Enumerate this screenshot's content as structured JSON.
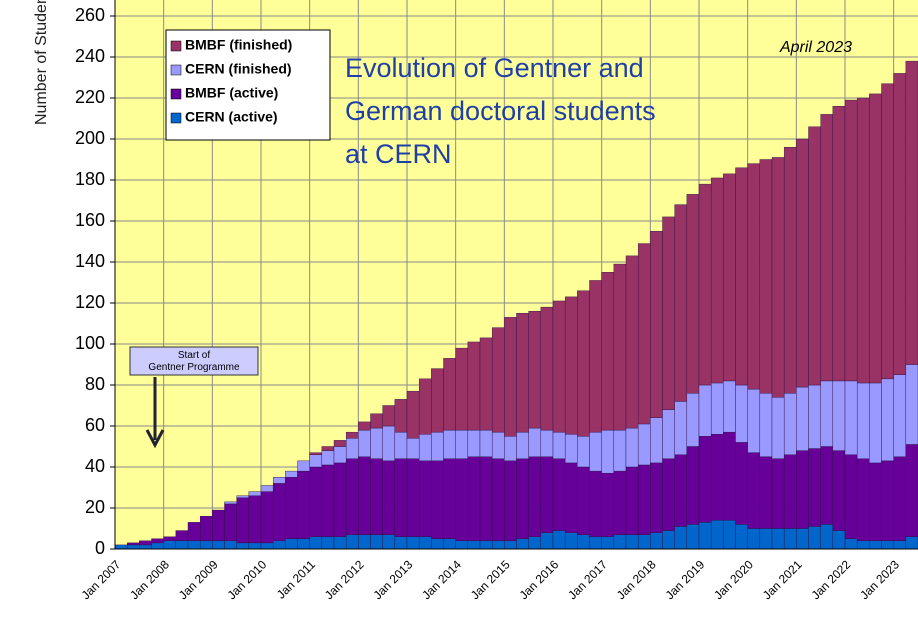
{
  "chart_data": {
    "type": "bar",
    "stacked": true,
    "title": "Evolution of Gentner and German doctoral students at CERN",
    "ylabel": "Number of Studen",
    "annotations": [
      "April 2023",
      "Start of Gentner Programme"
    ],
    "legend": "upper left",
    "grid": true,
    "ylim": [
      0,
      260
    ],
    "yticks": [
      0,
      20,
      40,
      60,
      80,
      100,
      120,
      140,
      160,
      180,
      200,
      220,
      240,
      260
    ],
    "categories": [
      "Jan 2007",
      null,
      null,
      null,
      "Jan 2008",
      null,
      null,
      null,
      "Jan 2009",
      null,
      null,
      null,
      "Jan 2010",
      null,
      null,
      null,
      "Jan 2011",
      null,
      null,
      null,
      "Jan 2012",
      null,
      null,
      null,
      "Jan 2013",
      null,
      null,
      null,
      "Jan 2014",
      null,
      null,
      null,
      "Jan 2015",
      null,
      null,
      null,
      "Jan 2016",
      null,
      null,
      null,
      "Jan 2017",
      null,
      null,
      null,
      "Jan 2018",
      null,
      null,
      null,
      "Jan 2019",
      null,
      null,
      null,
      "Jan 2020",
      null,
      null,
      null,
      "Jan 2021",
      null,
      null,
      null,
      "Jan 2022",
      null,
      null,
      null,
      "Jan 2023",
      null
    ],
    "series": [
      {
        "name": "BMBF (finished)",
        "color": "#993366",
        "values": [
          0,
          0,
          0,
          0,
          0,
          0,
          0,
          0,
          0,
          0,
          0,
          0,
          0,
          0,
          0,
          0,
          1,
          2,
          3,
          3,
          4,
          7,
          10,
          16,
          23,
          27,
          31,
          35,
          40,
          43,
          45,
          51,
          58,
          58,
          57,
          60,
          64,
          67,
          71,
          74,
          77,
          81,
          84,
          88,
          91,
          94,
          96,
          97,
          98,
          100,
          101,
          106,
          110,
          114,
          117,
          120,
          121,
          126,
          130,
          134,
          137,
          139,
          141,
          144,
          147,
          148
        ]
      },
      {
        "name": "CERN (finished)",
        "color": "#9999ff",
        "values": [
          0,
          0,
          0,
          0,
          0,
          0,
          0,
          0,
          0,
          1,
          1,
          2,
          3,
          3,
          3,
          5,
          6,
          7,
          8,
          10,
          13,
          15,
          17,
          13,
          10,
          13,
          14,
          14,
          14,
          13,
          13,
          13,
          12,
          13,
          14,
          13,
          13,
          14,
          15,
          19,
          21,
          20,
          19,
          20,
          22,
          24,
          26,
          26,
          25,
          25,
          25,
          28,
          31,
          31,
          30,
          30,
          31,
          31,
          32,
          34,
          36,
          37,
          39,
          40,
          40,
          39
        ]
      },
      {
        "name": "BMBF (active)",
        "color": "#660099",
        "values": [
          0,
          1,
          2,
          2,
          2,
          5,
          9,
          12,
          15,
          18,
          22,
          23,
          25,
          28,
          30,
          33,
          34,
          35,
          36,
          37,
          38,
          37,
          36,
          38,
          38,
          37,
          38,
          39,
          40,
          41,
          41,
          40,
          39,
          39,
          39,
          37,
          35,
          34,
          33,
          32,
          31,
          31,
          33,
          34,
          34,
          35,
          35,
          38,
          42,
          42,
          43,
          40,
          37,
          35,
          34,
          36,
          38,
          38,
          38,
          39,
          41,
          40,
          38,
          39,
          41,
          45
        ]
      },
      {
        "name": "CERN (active)",
        "color": "#0066cc",
        "values": [
          2,
          2,
          2,
          3,
          4,
          4,
          4,
          4,
          4,
          4,
          3,
          3,
          3,
          4,
          5,
          5,
          6,
          6,
          6,
          7,
          7,
          7,
          7,
          6,
          6,
          6,
          5,
          5,
          4,
          4,
          4,
          4,
          4,
          5,
          6,
          8,
          9,
          8,
          7,
          6,
          6,
          7,
          7,
          7,
          8,
          9,
          11,
          12,
          13,
          14,
          14,
          12,
          10,
          10,
          10,
          10,
          10,
          11,
          12,
          9,
          5,
          4,
          4,
          4,
          4,
          6
        ]
      }
    ]
  }
}
